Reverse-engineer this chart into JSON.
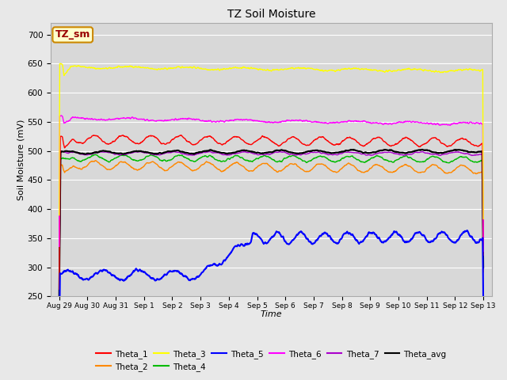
{
  "title": "TZ Soil Moisture",
  "xlabel": "Time",
  "ylabel": "Soil Moisture (mV)",
  "ylim": [
    250,
    720
  ],
  "yticks": [
    250,
    300,
    350,
    400,
    450,
    500,
    550,
    600,
    650,
    700
  ],
  "background_color": "#e8e8e8",
  "plot_bg_color": "#d8d8d8",
  "legend_box_label": "TZ_sm",
  "tick_labels": [
    "Aug 29",
    "Aug 30",
    "Aug 31",
    "Sep 1",
    "Sep 2",
    "Sep 3",
    "Sep 4",
    "Sep 5",
    "Sep 6",
    "Sep 7",
    "Sep 8",
    "Sep 9",
    "Sep 10",
    "Sep 11",
    "Sep 12",
    "Sep 13"
  ],
  "series_colors": {
    "Theta_1": "#ff0000",
    "Theta_2": "#ff8800",
    "Theta_3": "#ffff00",
    "Theta_4": "#00bb00",
    "Theta_5": "#0000ff",
    "Theta_6": "#ff00ff",
    "Theta_7": "#aa00cc",
    "Theta_avg": "#000000"
  }
}
